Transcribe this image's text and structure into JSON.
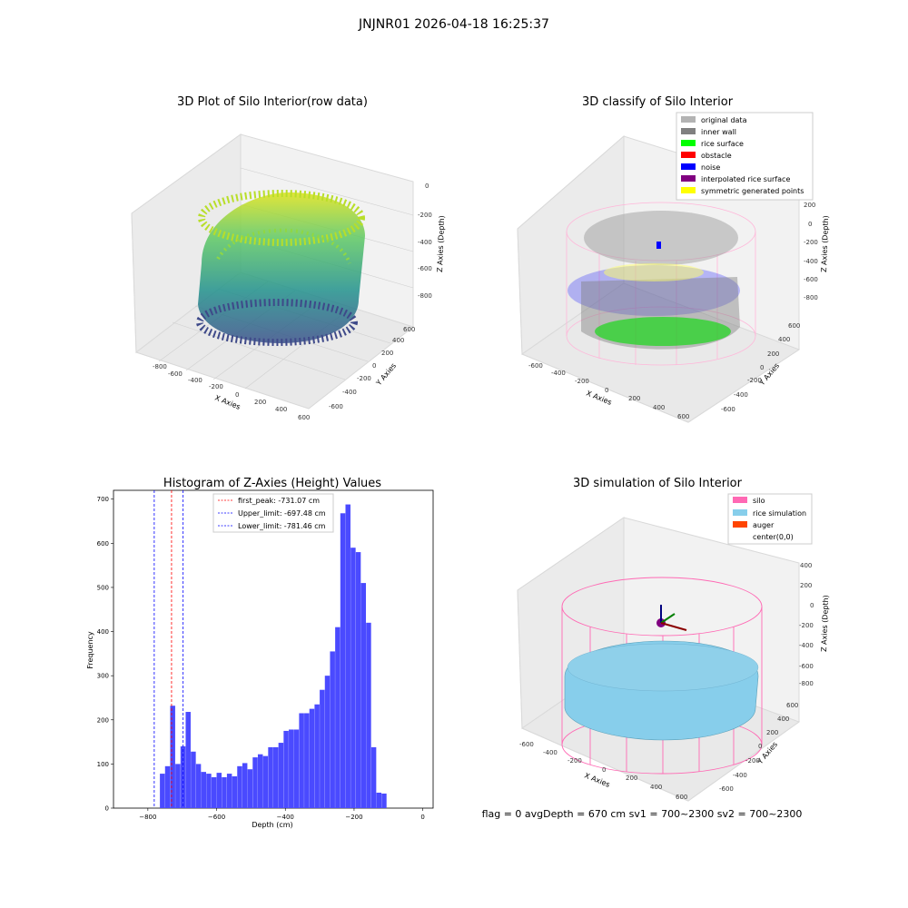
{
  "figure": {
    "suptitle": "JNJNR01 2026-04-18 16:25:37",
    "status_line": "flag = 0     avgDepth = 670 cm  sv1 = 700~2300  sv2 = 700~2300"
  },
  "chart_data": [
    {
      "type": "scatter3d",
      "title": "3D Plot of Silo Interior(row data)",
      "xlabel": "X Axies",
      "ylabel": "Y Axies",
      "zlabel": "Z Axies (Depth)",
      "x_ticks": [
        "-800",
        "-600",
        "-400",
        "-200",
        "0",
        "200",
        "400",
        "600"
      ],
      "y_ticks": [
        "-600",
        "-400",
        "-200",
        "0",
        "200",
        "400",
        "600"
      ],
      "z_ticks": [
        "0",
        "-200",
        "-400",
        "-600",
        "-800"
      ],
      "colormap": "viridis"
    },
    {
      "type": "scatter3d",
      "title": "3D classify of Silo Interior",
      "xlabel": "X Axies",
      "ylabel": "Y Axies",
      "zlabel": "Z Axies (Depth)",
      "x_ticks": [
        "-600",
        "-400",
        "-200",
        "0",
        "200",
        "400",
        "600"
      ],
      "y_ticks": [
        "-600",
        "-400",
        "-200",
        "0",
        "200",
        "400",
        "600"
      ],
      "z_ticks": [
        "200",
        "0",
        "-200",
        "-400",
        "-600",
        "-800"
      ],
      "legend": [
        {
          "label": "original data",
          "color": "#b3b3b3"
        },
        {
          "label": "inner wall",
          "color": "#808080"
        },
        {
          "label": "rice surface",
          "color": "#00ff00"
        },
        {
          "label": "obstacle",
          "color": "#ff0000"
        },
        {
          "label": "noise",
          "color": "#0000ff"
        },
        {
          "label": "interpolated rice surface",
          "color": "#800080"
        },
        {
          "label": "symmetric generated points",
          "color": "#ffff00"
        }
      ]
    },
    {
      "type": "bar",
      "title": "Histogram of Z-Axies (Height) Values",
      "xlabel": "Depth (cm)",
      "ylabel": "Frequency",
      "xlim": [
        -900,
        30
      ],
      "ylim": [
        0,
        720
      ],
      "x_ticks": [
        "−800",
        "−600",
        "−400",
        "−200",
        "0"
      ],
      "y_ticks": [
        "0",
        "100",
        "200",
        "300",
        "400",
        "500",
        "600",
        "700"
      ],
      "bar_color": "#4a4aff",
      "bin_width": 15,
      "bins": [
        {
          "x": -765,
          "y": 78
        },
        {
          "x": -750,
          "y": 95
        },
        {
          "x": -735,
          "y": 232
        },
        {
          "x": -720,
          "y": 100
        },
        {
          "x": -705,
          "y": 140
        },
        {
          "x": -690,
          "y": 218
        },
        {
          "x": -675,
          "y": 128
        },
        {
          "x": -660,
          "y": 100
        },
        {
          "x": -645,
          "y": 82
        },
        {
          "x": -630,
          "y": 78
        },
        {
          "x": -615,
          "y": 70
        },
        {
          "x": -600,
          "y": 80
        },
        {
          "x": -585,
          "y": 70
        },
        {
          "x": -570,
          "y": 78
        },
        {
          "x": -555,
          "y": 72
        },
        {
          "x": -540,
          "y": 95
        },
        {
          "x": -525,
          "y": 102
        },
        {
          "x": -510,
          "y": 88
        },
        {
          "x": -495,
          "y": 115
        },
        {
          "x": -480,
          "y": 122
        },
        {
          "x": -465,
          "y": 118
        },
        {
          "x": -450,
          "y": 138
        },
        {
          "x": -435,
          "y": 138
        },
        {
          "x": -420,
          "y": 148
        },
        {
          "x": -405,
          "y": 175
        },
        {
          "x": -390,
          "y": 178
        },
        {
          "x": -375,
          "y": 178
        },
        {
          "x": -360,
          "y": 215
        },
        {
          "x": -345,
          "y": 215
        },
        {
          "x": -330,
          "y": 225
        },
        {
          "x": -315,
          "y": 235
        },
        {
          "x": -300,
          "y": 268
        },
        {
          "x": -285,
          "y": 300
        },
        {
          "x": -270,
          "y": 355
        },
        {
          "x": -255,
          "y": 410
        },
        {
          "x": -240,
          "y": 668
        },
        {
          "x": -225,
          "y": 688
        },
        {
          "x": -210,
          "y": 590
        },
        {
          "x": -195,
          "y": 580
        },
        {
          "x": -180,
          "y": 510
        },
        {
          "x": -165,
          "y": 420
        },
        {
          "x": -150,
          "y": 138
        },
        {
          "x": -135,
          "y": 35
        },
        {
          "x": -120,
          "y": 33
        }
      ],
      "vlines": [
        {
          "label": "first_peak: -731.07 cm",
          "x": -731.07,
          "color": "#ff0000"
        },
        {
          "label": "Upper_limit: -697.48 cm",
          "x": -697.48,
          "color": "#0000ff"
        },
        {
          "label": "Lower_limit: -781.46 cm",
          "x": -781.46,
          "color": "#0000ff"
        }
      ]
    },
    {
      "type": "surface3d",
      "title": "3D simulation of Silo Interior",
      "xlabel": "X Axies",
      "ylabel": "Y Axies",
      "zlabel": "Z Axies (Depth)",
      "x_ticks": [
        "-600",
        "-400",
        "-200",
        "0",
        "200",
        "400",
        "600"
      ],
      "y_ticks": [
        "-600",
        "-400",
        "-200",
        "0",
        "200",
        "400",
        "600"
      ],
      "z_ticks": [
        "400",
        "200",
        "0",
        "-200",
        "-400",
        "-600",
        "-800"
      ],
      "legend": [
        {
          "label": "silo",
          "color": "#ff69b4"
        },
        {
          "label": "rice simulation",
          "color": "#87ceeb"
        },
        {
          "label": "auger",
          "color": "#ff4500"
        },
        {
          "label": "center(0,0)",
          "color": ""
        }
      ]
    }
  ]
}
